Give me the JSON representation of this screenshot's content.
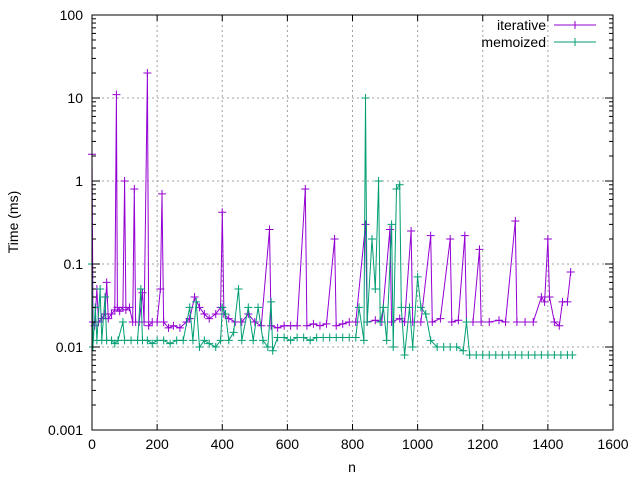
{
  "chart_data": {
    "type": "line",
    "title": "",
    "xlabel": "n",
    "ylabel": "Time (ms)",
    "xlim": [
      0,
      1600
    ],
    "ylim": [
      0.001,
      100
    ],
    "yscale": "log",
    "grid": true,
    "legend_position": "top-right",
    "x_ticks": [
      "0",
      "200",
      "400",
      "600",
      "800",
      "1000",
      "1200",
      "1400",
      "1600"
    ],
    "y_ticks": [
      "0.001",
      "0.01",
      "0.1",
      "1",
      "10",
      "100"
    ],
    "series": [
      {
        "name": "iterative",
        "color": "#9400d3",
        "points": [
          [
            0,
            2.1
          ],
          [
            3,
            0.02
          ],
          [
            8,
            0.018
          ],
          [
            15,
            0.05
          ],
          [
            20,
            0.02
          ],
          [
            30,
            0.022
          ],
          [
            40,
            0.025
          ],
          [
            45,
            0.06
          ],
          [
            50,
            0.022
          ],
          [
            60,
            0.025
          ],
          [
            70,
            0.028
          ],
          [
            75,
            11
          ],
          [
            78,
            0.03
          ],
          [
            85,
            0.027
          ],
          [
            95,
            0.03
          ],
          [
            100,
            1.0
          ],
          [
            104,
            0.028
          ],
          [
            115,
            0.03
          ],
          [
            125,
            0.02
          ],
          [
            130,
            0.8
          ],
          [
            134,
            0.02
          ],
          [
            145,
            0.02
          ],
          [
            155,
            0.045
          ],
          [
            160,
            0.02
          ],
          [
            170,
            20
          ],
          [
            174,
            0.018
          ],
          [
            185,
            0.02
          ],
          [
            200,
            0.02
          ],
          [
            210,
            0.05
          ],
          [
            215,
            0.7
          ],
          [
            220,
            0.02
          ],
          [
            235,
            0.017
          ],
          [
            250,
            0.018
          ],
          [
            270,
            0.017
          ],
          [
            290,
            0.02
          ],
          [
            300,
            0.022
          ],
          [
            315,
            0.04
          ],
          [
            330,
            0.03
          ],
          [
            345,
            0.025
          ],
          [
            360,
            0.022
          ],
          [
            380,
            0.025
          ],
          [
            395,
            0.03
          ],
          [
            400,
            0.42
          ],
          [
            405,
            0.025
          ],
          [
            420,
            0.022
          ],
          [
            440,
            0.02
          ],
          [
            460,
            0.02
          ],
          [
            480,
            0.025
          ],
          [
            500,
            0.02
          ],
          [
            520,
            0.018
          ],
          [
            545,
            0.26
          ],
          [
            550,
            0.018
          ],
          [
            570,
            0.017
          ],
          [
            590,
            0.018
          ],
          [
            610,
            0.018
          ],
          [
            630,
            0.018
          ],
          [
            655,
            0.8
          ],
          [
            660,
            0.018
          ],
          [
            680,
            0.019
          ],
          [
            700,
            0.018
          ],
          [
            720,
            0.019
          ],
          [
            745,
            0.2
          ],
          [
            750,
            0.018
          ],
          [
            770,
            0.019
          ],
          [
            790,
            0.02
          ],
          [
            810,
            0.02
          ],
          [
            840,
            0.3
          ],
          [
            845,
            0.02
          ],
          [
            870,
            0.021
          ],
          [
            890,
            0.02
          ],
          [
            915,
            0.26
          ],
          [
            920,
            0.02
          ],
          [
            945,
            0.022
          ],
          [
            960,
            0.02
          ],
          [
            980,
            0.25
          ],
          [
            985,
            0.02
          ],
          [
            1010,
            0.02
          ],
          [
            1040,
            0.22
          ],
          [
            1045,
            0.02
          ],
          [
            1070,
            0.022
          ],
          [
            1100,
            0.2
          ],
          [
            1105,
            0.02
          ],
          [
            1125,
            0.021
          ],
          [
            1145,
            0.22
          ],
          [
            1150,
            0.02
          ],
          [
            1170,
            0.02
          ],
          [
            1190,
            0.15
          ],
          [
            1195,
            0.02
          ],
          [
            1220,
            0.02
          ],
          [
            1250,
            0.021
          ],
          [
            1270,
            0.02
          ],
          [
            1300,
            0.33
          ],
          [
            1305,
            0.02
          ],
          [
            1330,
            0.02
          ],
          [
            1355,
            0.02
          ],
          [
            1380,
            0.04
          ],
          [
            1390,
            0.035
          ],
          [
            1400,
            0.2
          ],
          [
            1405,
            0.04
          ],
          [
            1420,
            0.02
          ],
          [
            1435,
            0.018
          ],
          [
            1445,
            0.035
          ],
          [
            1460,
            0.035
          ],
          [
            1470,
            0.08
          ]
        ]
      },
      {
        "name": "memoized",
        "color": "#009e73",
        "points": [
          [
            0,
            0.1
          ],
          [
            3,
            0.01
          ],
          [
            10,
            0.03
          ],
          [
            15,
            0.012
          ],
          [
            25,
            0.05
          ],
          [
            30,
            0.012
          ],
          [
            40,
            0.04
          ],
          [
            45,
            0.012
          ],
          [
            60,
            0.012
          ],
          [
            70,
            0.011
          ],
          [
            80,
            0.012
          ],
          [
            95,
            0.02
          ],
          [
            100,
            0.012
          ],
          [
            120,
            0.012
          ],
          [
            140,
            0.012
          ],
          [
            150,
            0.05
          ],
          [
            155,
            0.012
          ],
          [
            170,
            0.012
          ],
          [
            185,
            0.011
          ],
          [
            200,
            0.012
          ],
          [
            220,
            0.012
          ],
          [
            240,
            0.011
          ],
          [
            260,
            0.012
          ],
          [
            280,
            0.012
          ],
          [
            300,
            0.03
          ],
          [
            310,
            0.012
          ],
          [
            320,
            0.035
          ],
          [
            330,
            0.01
          ],
          [
            345,
            0.012
          ],
          [
            360,
            0.011
          ],
          [
            380,
            0.01
          ],
          [
            395,
            0.012
          ],
          [
            400,
            0.03
          ],
          [
            410,
            0.025
          ],
          [
            420,
            0.012
          ],
          [
            435,
            0.015
          ],
          [
            450,
            0.05
          ],
          [
            460,
            0.012
          ],
          [
            480,
            0.03
          ],
          [
            495,
            0.012
          ],
          [
            510,
            0.03
          ],
          [
            525,
            0.012
          ],
          [
            540,
            0.01
          ],
          [
            550,
            0.035
          ],
          [
            555,
            0.009
          ],
          [
            570,
            0.013
          ],
          [
            590,
            0.013
          ],
          [
            610,
            0.012
          ],
          [
            630,
            0.013
          ],
          [
            650,
            0.013
          ],
          [
            670,
            0.012
          ],
          [
            690,
            0.013
          ],
          [
            710,
            0.013
          ],
          [
            730,
            0.013
          ],
          [
            750,
            0.013
          ],
          [
            770,
            0.013
          ],
          [
            790,
            0.013
          ],
          [
            810,
            0.013
          ],
          [
            820,
            0.03
          ],
          [
            835,
            0.012
          ],
          [
            840,
            10
          ],
          [
            845,
            0.02
          ],
          [
            860,
            0.2
          ],
          [
            870,
            0.05
          ],
          [
            880,
            1.0
          ],
          [
            885,
            0.02
          ],
          [
            895,
            0.03
          ],
          [
            905,
            0.012
          ],
          [
            920,
            0.3
          ],
          [
            925,
            0.01
          ],
          [
            935,
            0.8
          ],
          [
            945,
            0.9
          ],
          [
            950,
            0.03
          ],
          [
            960,
            0.008
          ],
          [
            975,
            0.03
          ],
          [
            985,
            0.01
          ],
          [
            1000,
            0.07
          ],
          [
            1010,
            0.03
          ],
          [
            1025,
            0.025
          ],
          [
            1040,
            0.012
          ],
          [
            1060,
            0.01
          ],
          [
            1080,
            0.01
          ],
          [
            1100,
            0.01
          ],
          [
            1120,
            0.01
          ],
          [
            1140,
            0.009
          ],
          [
            1150,
            0.02
          ],
          [
            1160,
            0.008
          ],
          [
            1180,
            0.008
          ],
          [
            1200,
            0.008
          ],
          [
            1220,
            0.008
          ],
          [
            1240,
            0.008
          ],
          [
            1260,
            0.008
          ],
          [
            1280,
            0.008
          ],
          [
            1300,
            0.008
          ],
          [
            1320,
            0.008
          ],
          [
            1340,
            0.008
          ],
          [
            1360,
            0.008
          ],
          [
            1380,
            0.008
          ],
          [
            1400,
            0.008
          ],
          [
            1420,
            0.008
          ],
          [
            1440,
            0.008
          ],
          [
            1460,
            0.008
          ],
          [
            1475,
            0.008
          ]
        ]
      }
    ]
  }
}
